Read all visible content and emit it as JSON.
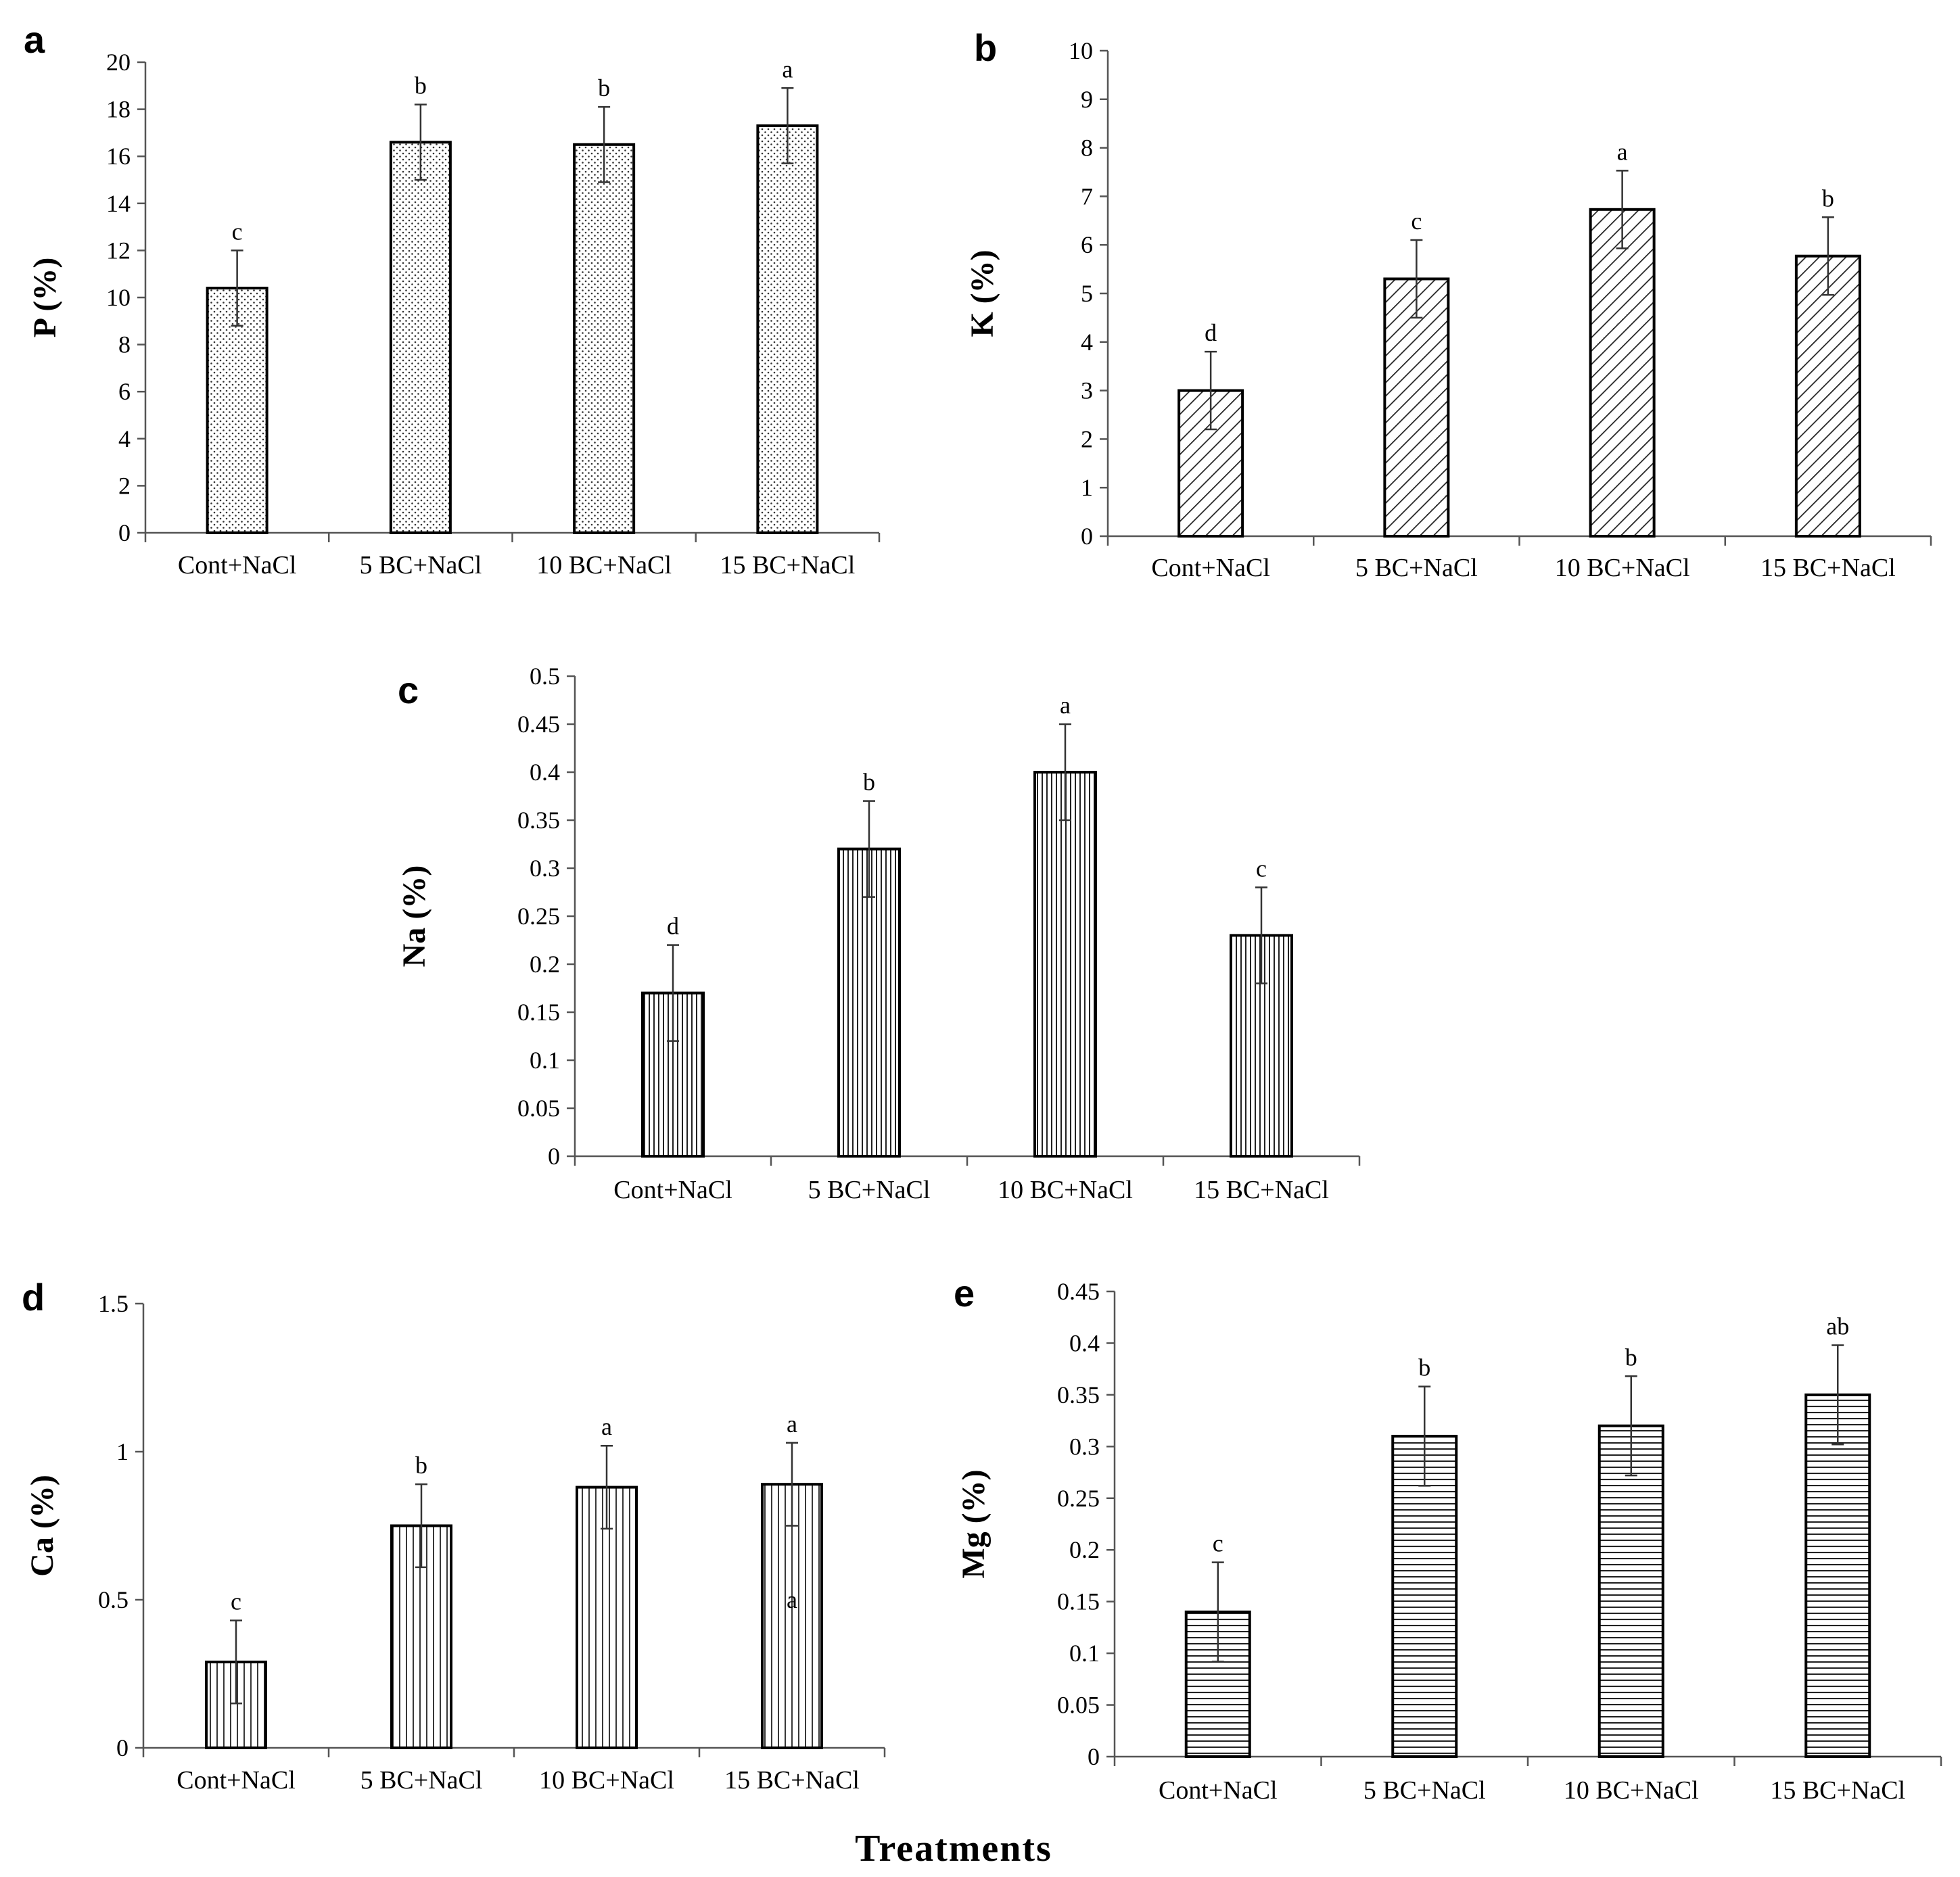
{
  "figure": {
    "xlabel": "Treatments"
  },
  "chart_data": [
    {
      "panel": "a",
      "type": "bar",
      "pattern": "dots",
      "ylabel": "P (%)",
      "ylim": [
        0,
        20
      ],
      "yticks": [
        "0",
        "2",
        "4",
        "6",
        "8",
        "10",
        "12",
        "14",
        "16",
        "18",
        "20"
      ],
      "categories": [
        "Cont+NaCl",
        "5 BC+NaCl",
        "10 BC+NaCl",
        "15 BC+NaCl"
      ],
      "values": [
        10.4,
        16.6,
        16.5,
        17.3
      ],
      "errors": [
        1.6,
        1.6,
        1.6,
        1.6
      ],
      "letters": [
        "c",
        "b",
        "b",
        "a"
      ]
    },
    {
      "panel": "b",
      "type": "bar",
      "pattern": "diagonal",
      "ylabel": "K (%)",
      "ylim": [
        0,
        10
      ],
      "yticks": [
        "0",
        "1",
        "2",
        "3",
        "4",
        "5",
        "6",
        "7",
        "8",
        "9",
        "10"
      ],
      "categories": [
        "Cont+NaCl",
        "5 BC+NaCl",
        "10 BC+NaCl",
        "15 BC+NaCl"
      ],
      "values": [
        3.0,
        5.3,
        6.73,
        5.77
      ],
      "errors": [
        0.8,
        0.8,
        0.8,
        0.8
      ],
      "letters": [
        "d",
        "c",
        "a",
        "b"
      ]
    },
    {
      "panel": "c",
      "type": "bar",
      "pattern": "vertical",
      "ylabel": "Na (%)",
      "ylim": [
        0,
        0.5
      ],
      "yticks": [
        "0",
        "0.05",
        "0.1",
        "0.15",
        "0.2",
        "0.25",
        "0.3",
        "0.35",
        "0.4",
        "0.45",
        "0.5"
      ],
      "categories": [
        "Cont+NaCl",
        "5 BC+NaCl",
        "10 BC+NaCl",
        "15 BC+NaCl"
      ],
      "values": [
        0.17,
        0.32,
        0.4,
        0.23
      ],
      "errors": [
        0.05,
        0.05,
        0.05,
        0.05
      ],
      "letters": [
        "d",
        "b",
        "a",
        "c"
      ]
    },
    {
      "panel": "d",
      "type": "bar",
      "pattern": "vertical-sparse",
      "ylabel": "Ca (%)",
      "ylim": [
        0,
        1.5
      ],
      "yticks": [
        "0",
        "0.5",
        "1",
        "1.5"
      ],
      "categories": [
        "Cont+NaCl",
        "5 BC+NaCl",
        "10 BC+NaCl",
        "15 BC+NaCl"
      ],
      "values": [
        0.29,
        0.75,
        0.88,
        0.89
      ],
      "errors": [
        0.14,
        0.14,
        0.14,
        0.14
      ],
      "letters": [
        "c",
        "b",
        "a",
        "a"
      ],
      "extra_label": {
        "category_index": 3,
        "text": "a",
        "y_value": 0.5
      }
    },
    {
      "panel": "e",
      "type": "bar",
      "pattern": "horizontal",
      "ylabel": "Mg (%)",
      "ylim": [
        0,
        0.45
      ],
      "yticks": [
        "0",
        "0.05",
        "0.1",
        "0.15",
        "0.2",
        "0.25",
        "0.3",
        "0.35",
        "0.4",
        "0.45"
      ],
      "categories": [
        "Cont+NaCl",
        "5 BC+NaCl",
        "10 BC+NaCl",
        "15 BC+NaCl"
      ],
      "values": [
        0.14,
        0.31,
        0.32,
        0.35
      ],
      "errors": [
        0.048,
        0.048,
        0.048,
        0.048
      ],
      "letters": [
        "c",
        "b",
        "b",
        "ab"
      ]
    }
  ]
}
